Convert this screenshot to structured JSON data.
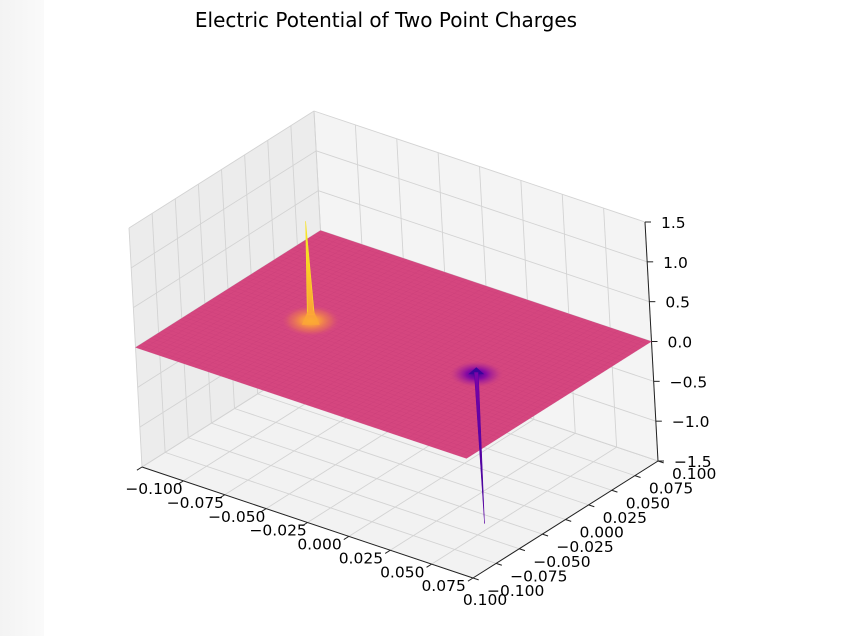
{
  "chart_data": {
    "type": "surface",
    "title": "Electric Potential of Two Point Charges",
    "xlabel": "",
    "ylabel": "",
    "zlabel": "",
    "xlim": [
      -0.1,
      0.1
    ],
    "ylim": [
      -0.1,
      0.1
    ],
    "zlim": [
      -1.5,
      1.5
    ],
    "x_ticks": [
      "−0.100",
      "−0.075",
      "−0.050",
      "−0.025",
      "0.000",
      "0.025",
      "0.050",
      "0.075",
      "0.100"
    ],
    "y_ticks": [
      "−0.100",
      "−0.075",
      "−0.050",
      "−0.025",
      "0.000",
      "0.025",
      "0.050",
      "0.075",
      "0.100"
    ],
    "z_ticks": [
      "−1.5",
      "−1.0",
      "−0.5",
      "0.0",
      "0.5",
      "1.0",
      "1.5"
    ],
    "x_tick_values": [
      -0.1,
      -0.075,
      -0.05,
      -0.025,
      0,
      0.025,
      0.05,
      0.075,
      0.1
    ],
    "y_tick_values": [
      -0.1,
      -0.075,
      -0.05,
      -0.025,
      0,
      0.025,
      0.05,
      0.075,
      0.1
    ],
    "z_tick_values": [
      -1.5,
      -1.0,
      -0.5,
      0,
      0.5,
      1.0,
      1.5
    ],
    "grid": true,
    "colormap": "plasma",
    "surface_color": "#d5467f",
    "charges": [
      {
        "sign": "positive",
        "x": -0.05,
        "y": 0.0,
        "peak": 1.2,
        "color": "#f0f921"
      },
      {
        "sign": "negative",
        "x": 0.05,
        "y": 0.0,
        "peak": -1.9,
        "color": "#6a00a8"
      }
    ]
  }
}
